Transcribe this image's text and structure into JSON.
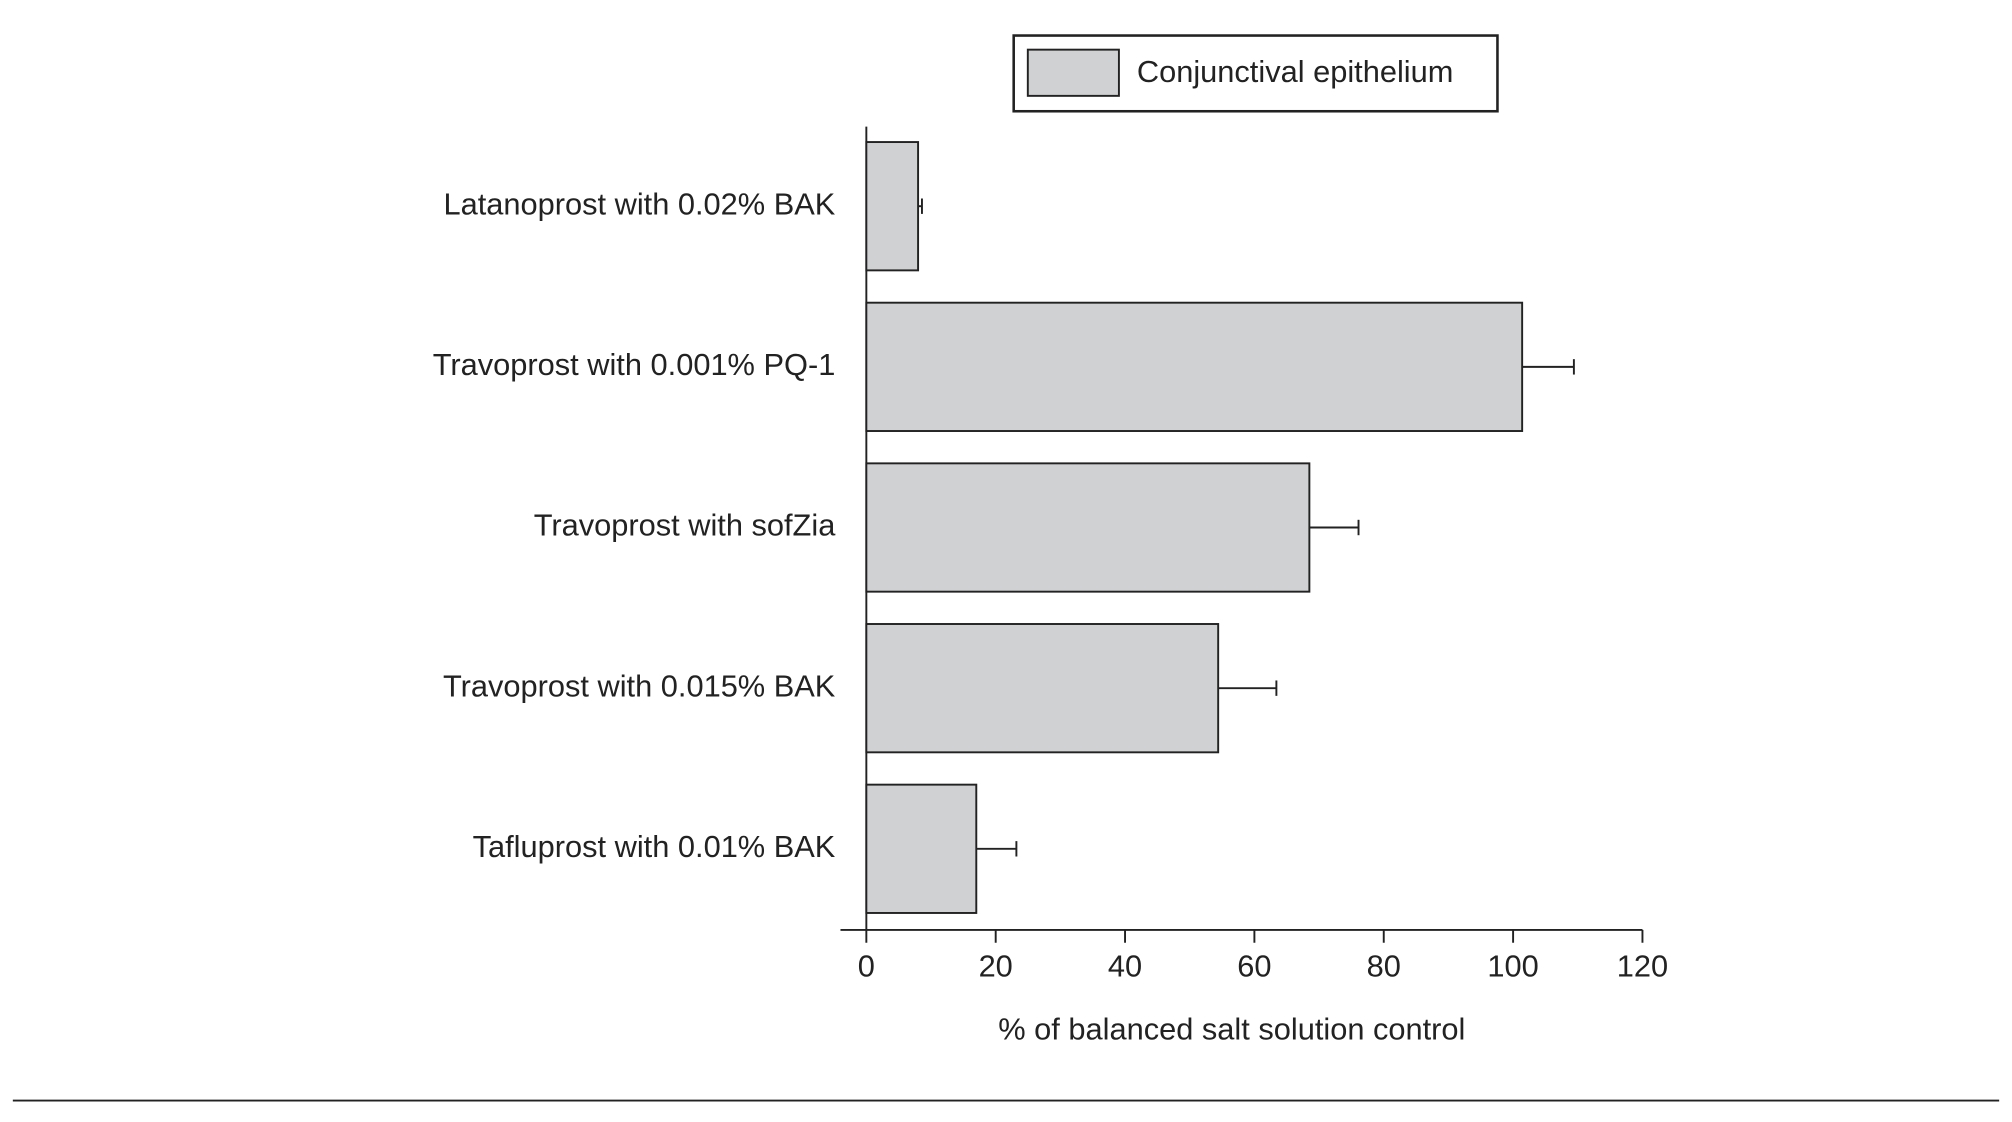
{
  "chart_data": {
    "type": "bar",
    "orientation": "horizontal",
    "x_label": "% of balanced salt solution control",
    "categories": [
      "Latanoprost with 0.02% BAK",
      "Travoprost with 0.001% PQ-1",
      "Travoprost with sofZia",
      "Travoprost with 0.015% BAK",
      "Tafluprost with 0.01% BAK"
    ],
    "series": [
      {
        "name": "Conjunctival epithelium",
        "color": "#d0d1d3",
        "values": [
          8,
          101.4,
          68.5,
          54.4,
          17
        ],
        "errors": [
          0.6,
          8,
          7.6,
          9,
          6.2
        ]
      }
    ],
    "xlim": [
      -4,
      120
    ],
    "xticks": [
      0,
      20,
      40,
      60,
      80,
      100,
      120
    ],
    "legend": "top"
  }
}
